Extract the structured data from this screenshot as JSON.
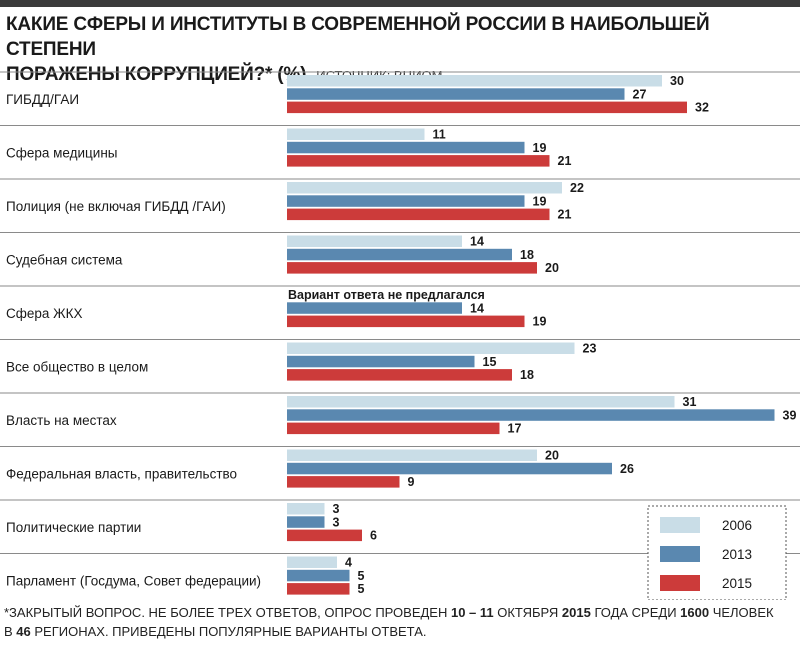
{
  "title": {
    "line1": "КАКИЕ СФЕРЫ И ИНСТИТУТЫ В СОВРЕМЕННОЙ РОССИИ В НАИБОЛЬШЕЙ СТЕПЕНИ",
    "line2": "ПОРАЖЕНЫ КОРРУПЦИЕЙ?* (%)",
    "source": "ИСТОЧНИК: ВЦИОМ."
  },
  "footer": {
    "p1": "*ЗАКРЫТЫЙ ВОПРОС. НЕ БОЛЕЕ ТРЕХ ОТВЕТОВ, ОПРОС ПРОВЕДЕН ",
    "b1": "10 – 11",
    "p2": " ОКТЯБРЯ ",
    "b2": "2015",
    "p3": " ГОДА СРЕДИ ",
    "b3": "1600",
    "p4": " ЧЕЛОВЕК",
    "p5": "В ",
    "b4": "46",
    "p6": " РЕГИОНАХ. ПРИВЕДЕНЫ ПОПУЛЯРНЫЕ ВАРИАНТЫ ОТВЕТА."
  },
  "chart_data": {
    "type": "bar",
    "orientation": "horizontal",
    "title": "КАКИЕ СФЕРЫ И ИНСТИТУТЫ В СОВРЕМЕННОЙ РОССИИ В НАИБОЛЬШЕЙ СТЕПЕНИ ПОРАЖЕНЫ КОРРУПЦИЕЙ?* (%)",
    "categories": [
      "ГИБДД/ГАИ",
      "Сфера медицины",
      "Полиция (не включая ГИБДД /ГАИ)",
      "Судебная система",
      "Сфера ЖКХ",
      "Все общество в целом",
      "Власть на местах",
      "Федеральная власть, правительство",
      "Политические партии",
      "Парламент (Госдума, Совет федерации)"
    ],
    "series": [
      {
        "name": "2006",
        "color": "#c9dde7",
        "values": [
          30,
          11,
          22,
          14,
          null,
          23,
          31,
          20,
          3,
          4
        ]
      },
      {
        "name": "2013",
        "color": "#5a88b0",
        "values": [
          27,
          19,
          19,
          18,
          14,
          15,
          39,
          26,
          3,
          5
        ]
      },
      {
        "name": "2015",
        "color": "#cc3b3a",
        "values": [
          32,
          21,
          21,
          20,
          19,
          18,
          17,
          9,
          6,
          5
        ]
      }
    ],
    "missing_note": "Вариант ответа не предлагался",
    "legend_position": "bottom-right",
    "grid": false,
    "xlim": [
      0,
      40
    ]
  }
}
